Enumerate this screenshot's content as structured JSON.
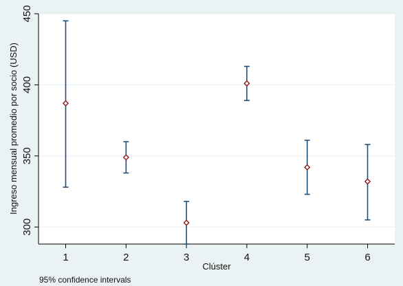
{
  "chart_data": {
    "type": "scatter",
    "subtype": "mean-with-confidence-interval",
    "xlabel": "Clúster",
    "ylabel": "Ingreso mensual promedio por socio (USD)",
    "note": "95% confidence intervals",
    "x": [
      1,
      2,
      3,
      4,
      5,
      6
    ],
    "values": [
      387,
      349,
      303,
      401,
      342,
      332
    ],
    "ci_low": [
      328,
      338,
      288,
      389,
      323,
      305
    ],
    "ci_high": [
      445,
      360,
      318,
      413,
      361,
      358
    ],
    "xticks": [
      "1",
      "2",
      "3",
      "4",
      "5",
      "6"
    ],
    "yticks": [
      "300",
      "350",
      "400",
      "450"
    ],
    "xlim": [
      0.55,
      6.45
    ],
    "ylim": [
      288,
      450
    ],
    "grid": true,
    "colors": {
      "background": "#eaf2f3",
      "plot_background": "#ffffff",
      "gridline": "#e9eef0",
      "interval": "#1f4e79",
      "marker": "#8b1a1a"
    }
  }
}
